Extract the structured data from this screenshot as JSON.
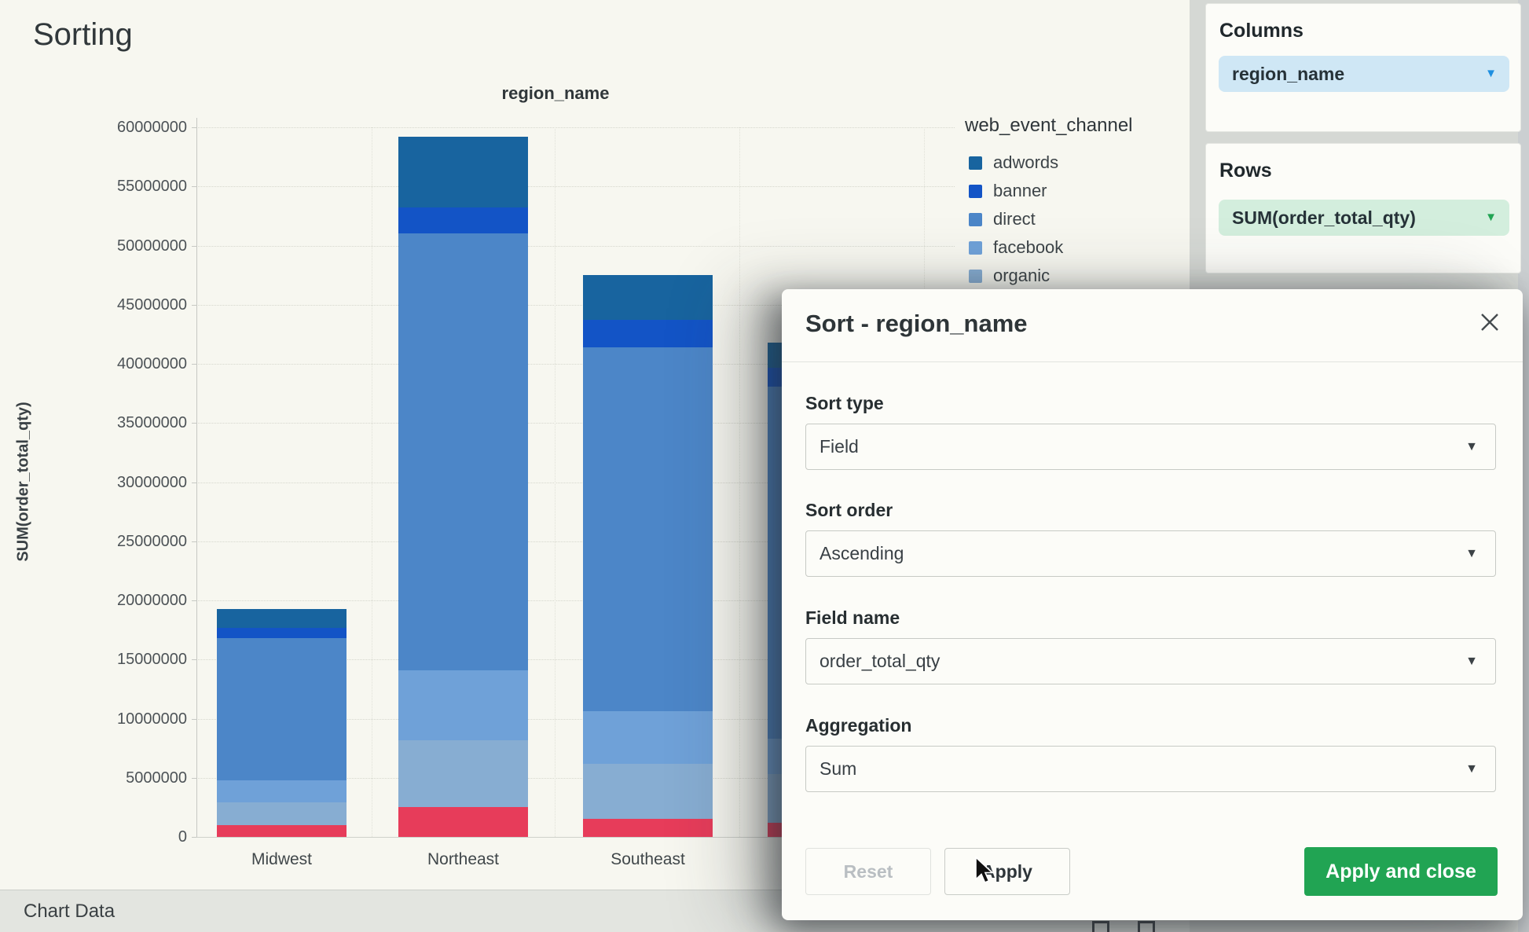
{
  "page": {
    "title": "Sorting"
  },
  "chart_data": {
    "type": "bar",
    "stacked": true,
    "title": "region_name",
    "xlabel": "region_name",
    "ylabel": "SUM(order_total_qty)",
    "ylim": [
      0,
      60000000
    ],
    "ytick_step": 5000000,
    "grid": true,
    "categories": [
      "Midwest",
      "Northeast",
      "Southeast",
      ""
    ],
    "series": [
      {
        "name": "",
        "note": "bottom red series, legend entry hidden behind dialog",
        "color": "#e73c5a",
        "values": [
          1000000,
          2500000,
          1500000,
          1200000
        ]
      },
      {
        "name": "organic",
        "color": "#87add2",
        "values": [
          1900000,
          5700000,
          4700000,
          4100000
        ]
      },
      {
        "name": "facebook",
        "color": "#6fa1d8",
        "values": [
          1900000,
          5900000,
          4400000,
          3000000
        ]
      },
      {
        "name": "direct",
        "color": "#4c86c8",
        "values": [
          12000000,
          36900000,
          30800000,
          29800000
        ]
      },
      {
        "name": "banner",
        "color": "#1354c6",
        "values": [
          900000,
          2200000,
          2300000,
          1600000
        ]
      },
      {
        "name": "adwords",
        "color": "#18649f",
        "values": [
          1600000,
          6000000,
          3800000,
          2100000
        ]
      }
    ],
    "legend": {
      "title": "web_event_channel",
      "position": "right",
      "items": [
        "adwords",
        "banner",
        "direct",
        "facebook",
        "organic"
      ]
    },
    "note": "fourth bar and remaining legend entries are partially hidden behind the Sort dialog"
  },
  "panel": {
    "columns": {
      "heading": "Columns",
      "pill": "region_name"
    },
    "rows": {
      "heading": "Rows",
      "pill": "SUM(order_total_qty)"
    },
    "accent_blue": "#1e8fe0",
    "accent_green": "#21a453"
  },
  "modal": {
    "title": "Sort - region_name",
    "fields": [
      {
        "label": "Sort type",
        "value": "Field"
      },
      {
        "label": "Sort order",
        "value": "Ascending"
      },
      {
        "label": "Field name",
        "value": "order_total_qty"
      },
      {
        "label": "Aggregation",
        "value": "Sum"
      }
    ],
    "buttons": {
      "reset": "Reset",
      "apply": "Apply",
      "apply_close": "Apply and close"
    }
  },
  "footer": {
    "label": "Chart Data"
  }
}
